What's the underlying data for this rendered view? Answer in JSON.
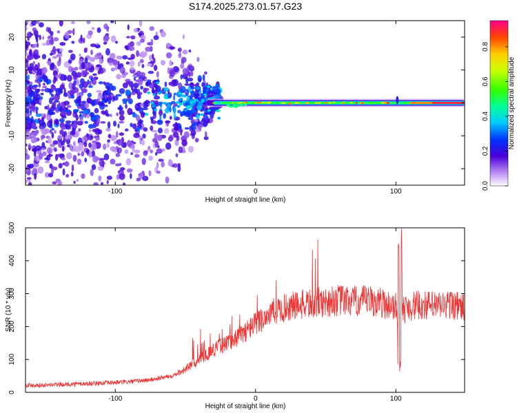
{
  "chart_data": [
    {
      "type": "heatmap",
      "title": "S174.2025.273.01.57.G23",
      "xlabel": "Height of straight line (km)",
      "ylabel": "Frequency (Hz)",
      "xlim": [
        -164,
        149
      ],
      "ylim": [
        -25,
        25
      ],
      "xticks": [
        -100,
        0,
        100
      ],
      "yticks": [
        -20,
        -10,
        0,
        10,
        20
      ],
      "description_values": {
        "line_frequency_hz": 0,
        "coherent_start_km": -35,
        "noisy_region_km": [
          -164,
          -35
        ]
      },
      "colorbar": {
        "label": "Normalized spectral amplitude",
        "range": [
          0.0,
          0.95
        ],
        "ticks": [
          0.0,
          0.2,
          0.4,
          0.6,
          0.8
        ],
        "tick_labels": [
          "0.0",
          "0.2",
          "0.4",
          "0.6",
          "0.8"
        ]
      }
    },
    {
      "type": "line",
      "title": "",
      "xlabel": "Height of straight line (km)",
      "ylabel": "SNR (10 * v/v)",
      "xlim": [
        -164,
        149
      ],
      "ylim": [
        0,
        500
      ],
      "xticks": [
        -100,
        0,
        100
      ],
      "yticks": [
        0,
        100,
        200,
        300,
        400,
        500
      ],
      "color": "#ee3333",
      "series": [
        {
          "name": "SNR",
          "x": [
            -164,
            -150,
            -130,
            -110,
            -90,
            -75,
            -60,
            -50,
            -40,
            -30,
            -20,
            -10,
            0,
            10,
            20,
            30,
            40,
            50,
            60,
            70,
            80,
            90,
            100,
            103,
            105,
            110,
            120,
            130,
            140,
            149
          ],
          "y": [
            22,
            22,
            25,
            28,
            32,
            38,
            50,
            70,
            100,
            130,
            150,
            175,
            210,
            240,
            255,
            265,
            270,
            275,
            280,
            275,
            278,
            272,
            260,
            120,
            250,
            262,
            265,
            262,
            268,
            255
          ]
        }
      ]
    }
  ]
}
